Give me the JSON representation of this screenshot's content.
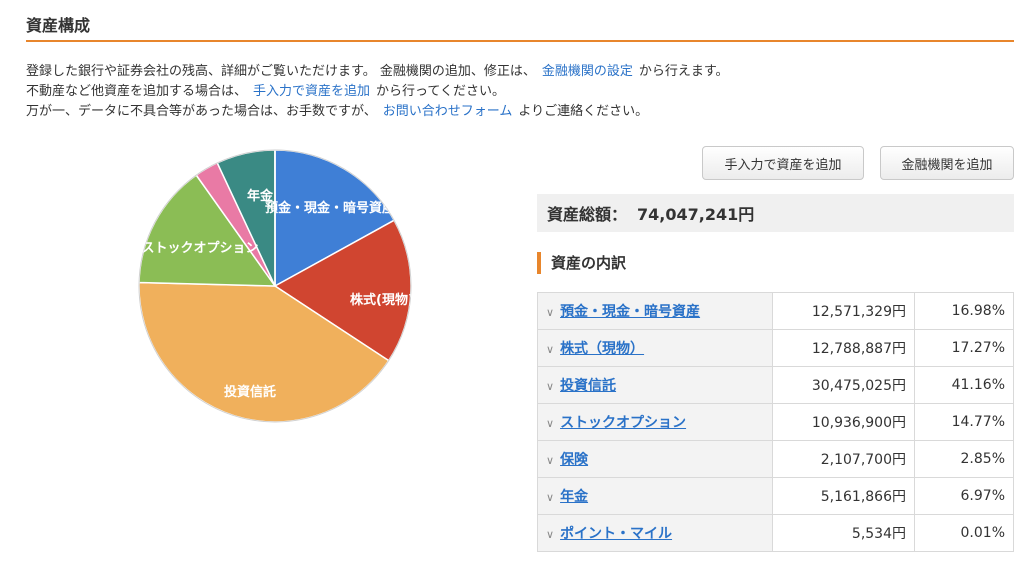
{
  "header": {
    "title": "資産構成"
  },
  "intro": {
    "line1_pre": "登録した銀行や証券会社の残高、詳細がご覧いただけます。 金融機関の追加、修正は、",
    "line1_link": "金融機関の設定",
    "line1_post": "から行えます。",
    "line2_pre": "不動産など他資産を追加する場合は、",
    "line2_link": "手入力で資産を追加",
    "line2_post": "から行ってください。",
    "line3_pre": "万が一、データに不具合等があった場合は、お手数ですが、",
    "line3_link": "お問い合わせフォーム",
    "line3_post": "よりご連絡ください。"
  },
  "buttons": {
    "manual_add": "手入力で資産を追加",
    "institution_add": "金融機関を追加"
  },
  "total": {
    "label": "資産総額：",
    "amount": "74,047,241円"
  },
  "breakdown": {
    "title": "資産の内訳"
  },
  "assets": [
    {
      "name": "預金・現金・暗号資産",
      "amount": "12,571,329円",
      "pct": "16.98%"
    },
    {
      "name": "株式（現物）",
      "amount": "12,788,887円",
      "pct": "17.27%"
    },
    {
      "name": "投資信託",
      "amount": "30,475,025円",
      "pct": "41.16%"
    },
    {
      "name": "ストックオプション",
      "amount": "10,936,900円",
      "pct": "14.77%"
    },
    {
      "name": "保険",
      "amount": "2,107,700円",
      "pct": "2.85%"
    },
    {
      "name": "年金",
      "amount": "5,161,866円",
      "pct": "6.97%"
    },
    {
      "name": "ポイント・マイル",
      "amount": "5,534円",
      "pct": "0.01%"
    }
  ],
  "chart_data": {
    "type": "pie",
    "categories": [
      "預金・現金・暗号資産",
      "株式(現物)",
      "投資信託",
      "ストックオプション",
      "保険",
      "年金",
      "ポイント・マイル"
    ],
    "values": [
      16.98,
      17.27,
      41.16,
      14.77,
      2.85,
      6.97,
      0.01
    ],
    "labels": [
      "預金・現金・暗号資産",
      "株式(現物)",
      "投資信託",
      "ストックオプション",
      "",
      "年金",
      ""
    ],
    "colors": [
      "#3f7fd6",
      "#d04530",
      "#f0b05c",
      "#8bbd55",
      "#e97aa5",
      "#3a8a84",
      "#6b9c9c"
    ]
  }
}
